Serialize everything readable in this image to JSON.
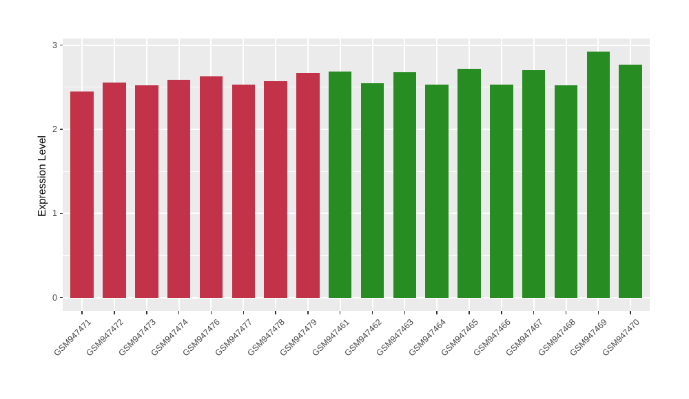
{
  "figure": {
    "background": "#FFFFFF",
    "panel_background": "#EBEBEB",
    "gridline_color": "#FFFFFF",
    "tick_color": "#333333",
    "axis_text_color": "#454545"
  },
  "chart_data": {
    "type": "bar",
    "title": "",
    "xlabel": "",
    "ylabel": "Expression Level",
    "categories": [
      "GSM947471",
      "GSM947472",
      "GSM947473",
      "GSM947474",
      "GSM947476",
      "GSM947477",
      "GSM947478",
      "GSM947479",
      "GSM947461",
      "GSM947462",
      "GSM947463",
      "GSM947464",
      "GSM947465",
      "GSM947466",
      "GSM947467",
      "GSM947468",
      "GSM947469",
      "GSM947470"
    ],
    "values": [
      2.45,
      2.56,
      2.52,
      2.59,
      2.63,
      2.53,
      2.57,
      2.67,
      2.69,
      2.55,
      2.68,
      2.53,
      2.72,
      2.53,
      2.7,
      2.52,
      2.92,
      2.77
    ],
    "bar_colors": [
      "#C23349",
      "#C23349",
      "#C23349",
      "#C23349",
      "#C23349",
      "#C23349",
      "#C23349",
      "#C23349",
      "#278C22",
      "#278C22",
      "#278C22",
      "#278C22",
      "#278C22",
      "#278C22",
      "#278C22",
      "#278C22",
      "#278C22",
      "#278C22"
    ],
    "palette": {
      "group_red": "#C23349",
      "group_green": "#278C22"
    },
    "yticks": [
      0,
      1,
      2,
      3
    ],
    "yticks_minor": [
      0.5,
      1.5,
      2.5
    ],
    "ylim": [
      0,
      3.08
    ],
    "grid": true,
    "legend": false
  }
}
